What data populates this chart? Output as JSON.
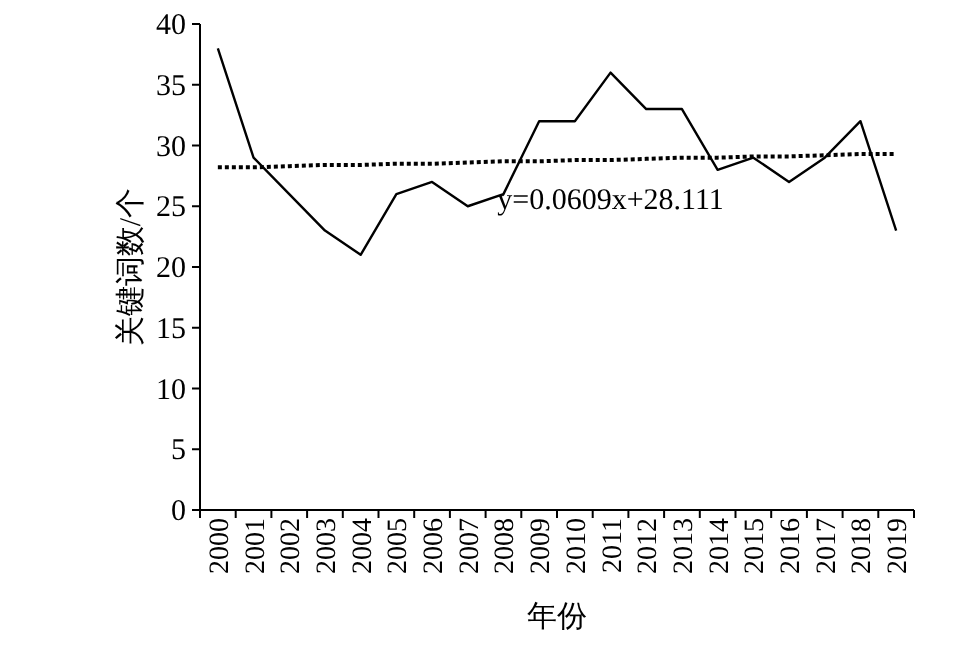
{
  "chart_data": {
    "type": "line",
    "xlabel": "年份",
    "ylabel": "关键词数/个",
    "categories": [
      "2000",
      "2001",
      "2002",
      "2003",
      "2004",
      "2005",
      "2006",
      "2007",
      "2008",
      "2009",
      "2010",
      "2011",
      "2012",
      "2013",
      "2014",
      "2015",
      "2016",
      "2017",
      "2018",
      "2019"
    ],
    "series": [
      {
        "color": "#000000",
        "values": [
          38,
          29,
          26,
          23,
          21,
          26,
          27,
          25,
          26,
          32,
          32,
          36,
          33,
          33,
          28,
          29,
          27,
          29,
          32,
          23
        ]
      },
      {
        "color": "#000000",
        "line_style": "dotted",
        "values": [
          28.2,
          28.2,
          28.3,
          28.4,
          28.4,
          28.5,
          28.5,
          28.6,
          28.7,
          28.7,
          28.8,
          28.8,
          28.9,
          29.0,
          29.0,
          29.1,
          29.1,
          29.2,
          29.3,
          29.3
        ]
      }
    ],
    "ylim": [
      0,
      40
    ],
    "yticks": [
      0,
      5,
      10,
      15,
      20,
      25,
      30,
      35,
      40
    ],
    "grid": false,
    "marker": "none",
    "annotations": [
      "y=0.0609x+28.111"
    ]
  }
}
